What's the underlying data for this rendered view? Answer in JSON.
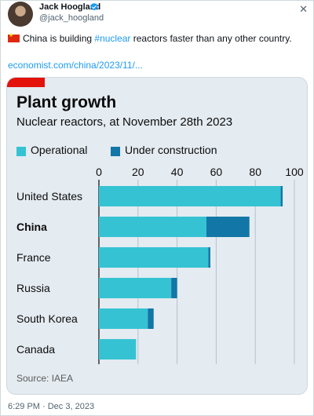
{
  "tweet": {
    "author_name": "Jack Hoogland",
    "handle": "@jack_hoogland",
    "text_before": "China is building ",
    "hashtag": "#nuclear",
    "text_after": " reactors faster than any other country.",
    "link": "economist.com/china/2023/11/...",
    "timestamp": "6:29 PM · Dec 3, 2023"
  },
  "colors": {
    "operational": "#35c3d3",
    "under_construction": "#1276a6",
    "brand_red": "#e3120b",
    "link_blue": "#1d9bf0",
    "verified_blue": "#1d9bf0"
  },
  "icons": {
    "close": "close-icon",
    "verified": "verified-badge-icon",
    "flag": "china-flag-icon"
  },
  "chart_data": {
    "type": "bar",
    "orientation": "horizontal",
    "stacked": true,
    "title": "Plant growth",
    "subtitle": "Nuclear reactors, at November 28th 2023",
    "categories": [
      "United States",
      "China",
      "France",
      "Russia",
      "South Korea",
      "Canada"
    ],
    "emphasized_category": "China",
    "series": [
      {
        "name": "Operational",
        "values": [
          93,
          55,
          56,
          37,
          25,
          19
        ]
      },
      {
        "name": "Under construction",
        "values": [
          1,
          22,
          1,
          3,
          3,
          0
        ]
      }
    ],
    "xlim": [
      0,
      100
    ],
    "xticks": [
      0,
      20,
      40,
      60,
      80,
      100
    ],
    "grid": true,
    "legend_position": "top-left",
    "source": "Source: IAEA"
  }
}
